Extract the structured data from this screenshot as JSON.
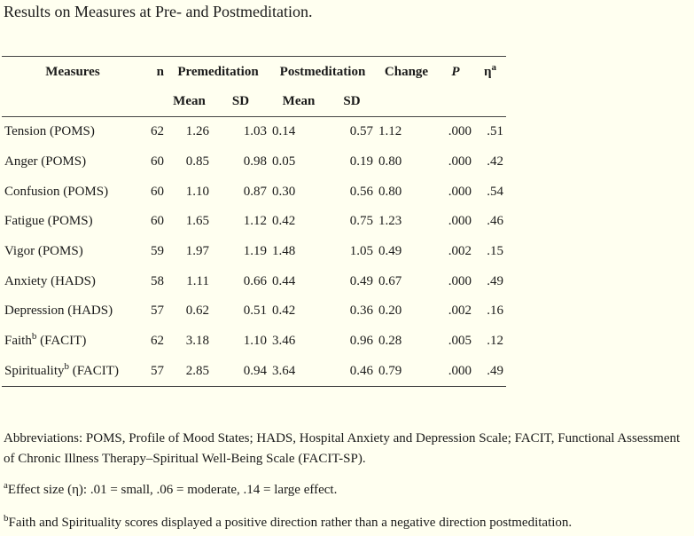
{
  "caption": "Results on Measures at Pre- and Postmeditation.",
  "table": {
    "headers": {
      "measures": "Measures",
      "n": "n",
      "premeditation": "Premeditation",
      "postmeditation": "Postmeditation",
      "change": "Change",
      "p": "P",
      "eta": "η",
      "eta_sup": "a",
      "mean": "Mean",
      "sd": "SD"
    },
    "rows": [
      {
        "measure": "Tension (POMS)",
        "sup": "",
        "suffix": "",
        "n": "62",
        "pre_mean": "1.26",
        "pre_sd": "1.03",
        "post_mean": "0.14",
        "post_sd": "0.57",
        "change": "1.12",
        "p": ".000",
        "eta": ".51"
      },
      {
        "measure": "Anger (POMS)",
        "sup": "",
        "suffix": "",
        "n": "60",
        "pre_mean": "0.85",
        "pre_sd": "0.98",
        "post_mean": "0.05",
        "post_sd": "0.19",
        "change": "0.80",
        "p": ".000",
        "eta": ".42"
      },
      {
        "measure": "Confusion (POMS)",
        "sup": "",
        "suffix": "",
        "n": "60",
        "pre_mean": "1.10",
        "pre_sd": "0.87",
        "post_mean": "0.30",
        "post_sd": "0.56",
        "change": "0.80",
        "p": ".000",
        "eta": ".54"
      },
      {
        "measure": "Fatigue (POMS)",
        "sup": "",
        "suffix": "",
        "n": "60",
        "pre_mean": "1.65",
        "pre_sd": "1.12",
        "post_mean": "0.42",
        "post_sd": "0.75",
        "change": "1.23",
        "p": ".000",
        "eta": ".46"
      },
      {
        "measure": "Vigor (POMS)",
        "sup": "",
        "suffix": "",
        "n": "59",
        "pre_mean": "1.97",
        "pre_sd": "1.19",
        "post_mean": "1.48",
        "post_sd": "1.05",
        "change": "0.49",
        "p": ".002",
        "eta": ".15"
      },
      {
        "measure": "Anxiety (HADS)",
        "sup": "",
        "suffix": "",
        "n": "58",
        "pre_mean": "1.11",
        "pre_sd": "0.66",
        "post_mean": "0.44",
        "post_sd": "0.49",
        "change": "0.67",
        "p": ".000",
        "eta": ".49"
      },
      {
        "measure": "Depression (HADS)",
        "sup": "",
        "suffix": "",
        "n": "57",
        "pre_mean": "0.62",
        "pre_sd": "0.51",
        "post_mean": "0.42",
        "post_sd": "0.36",
        "change": "0.20",
        "p": ".002",
        "eta": ".16"
      },
      {
        "measure": "Faith",
        "sup": "b",
        "suffix": " (FACIT)",
        "n": "62",
        "pre_mean": "3.18",
        "pre_sd": "1.10",
        "post_mean": "3.46",
        "post_sd": "0.96",
        "change": "0.28",
        "p": ".005",
        "eta": ".12"
      },
      {
        "measure": "Spirituality",
        "sup": "b",
        "suffix": " (FACIT)",
        "n": "57",
        "pre_mean": "2.85",
        "pre_sd": "0.94",
        "post_mean": "3.64",
        "post_sd": "0.46",
        "change": "0.79",
        "p": ".000",
        "eta": ".49"
      }
    ]
  },
  "notes": {
    "abbreviations": "Abbreviations: POMS, Profile of Mood States; HADS, Hospital Anxiety and Depression Scale; FACIT, Functional Assessment of Chronic Illness Therapy–Spiritual Well-Being Scale (FACIT-SP).",
    "footnote_a_mark": "a",
    "footnote_a": "Effect size (η): .01 = small, .06 = moderate, .14 = large effect.",
    "footnote_b_mark": "b",
    "footnote_b": "Faith and Spirituality scores displayed a positive direction rather than a negative direction postmeditation."
  }
}
